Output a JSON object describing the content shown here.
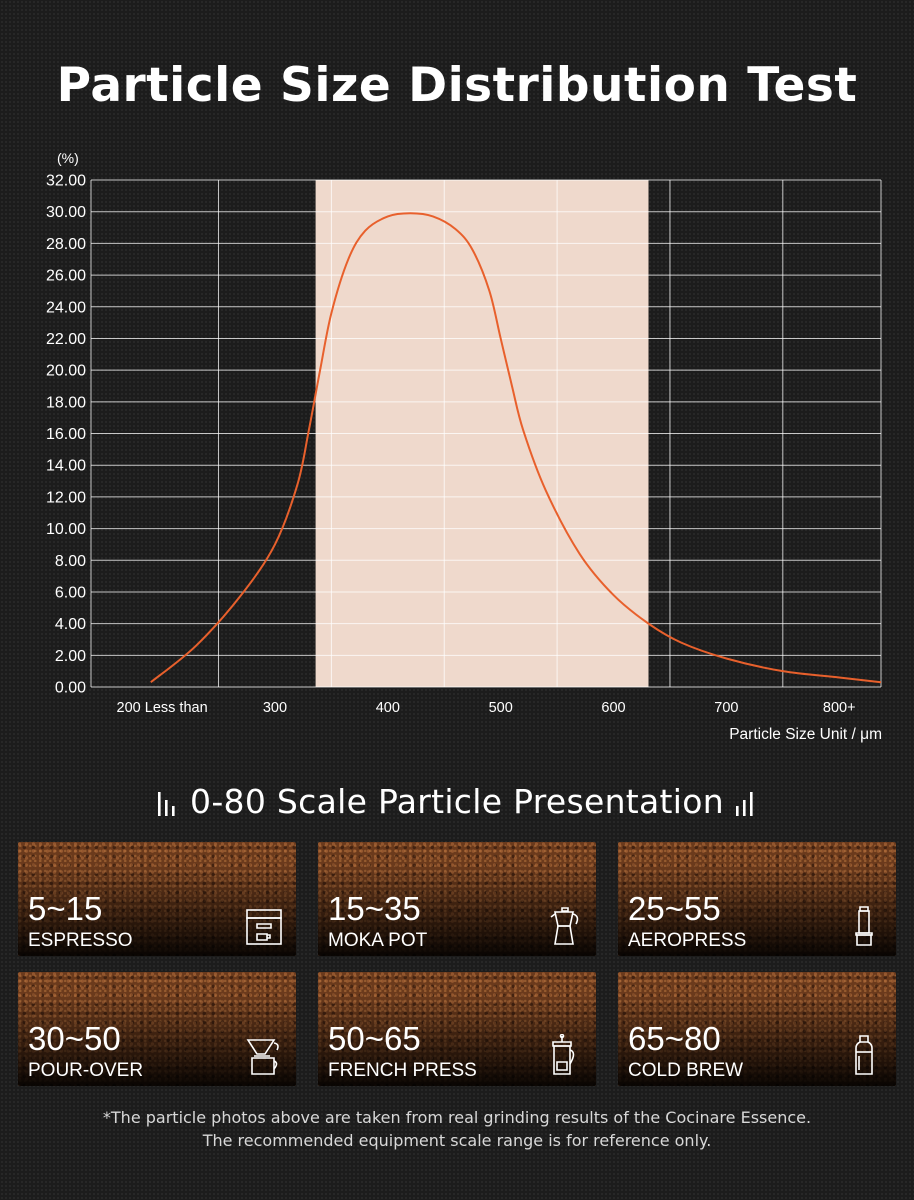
{
  "page": {
    "title": "Particle Size Distribution Test",
    "section_title": "0-80 Scale Particle Presentation",
    "footnote_line1": "*The particle photos above are taken from real grinding results of the Cocinare Essence.",
    "footnote_line2": "The recommended equipment scale range is for reference only."
  },
  "colors": {
    "background": "#1c1c1c",
    "curve": "#e8602c",
    "highlight_band": "#efd9cc",
    "grid": "#ffffff"
  },
  "chart_data": {
    "type": "line",
    "title": "Particle Size Distribution Test",
    "y_unit_label": "(%)",
    "xlabel": "Particle Size Unit / μm",
    "ylim": [
      0,
      32
    ],
    "y_ticks": [
      "0.00",
      "2.00",
      "4.00",
      "6.00",
      "8.00",
      "10.00",
      "12.00",
      "14.00",
      "16.00",
      "18.00",
      "20.00",
      "22.00",
      "24.00",
      "26.00",
      "28.00",
      "30.00",
      "32.00"
    ],
    "x_ticks": [
      {
        "label": "200 Less than",
        "value": 200
      },
      {
        "label": "300",
        "value": 300
      },
      {
        "label": "400",
        "value": 400
      },
      {
        "label": "500",
        "value": 500
      },
      {
        "label": "600",
        "value": 600
      },
      {
        "label": "700",
        "value": 700
      },
      {
        "label": "800+",
        "value": 800
      }
    ],
    "xlim": [
      137,
      837
    ],
    "highlight_range": [
      336,
      631
    ],
    "grid": true,
    "series": [
      {
        "x": [
          190,
          230,
          270,
          300,
          320,
          330,
          340,
          350,
          365,
          380,
          400,
          420,
          440,
          460,
          475,
          490,
          500,
          510,
          520,
          540,
          570,
          600,
          631,
          660,
          700,
          750,
          800,
          837
        ],
        "y": [
          0.3,
          2.6,
          5.8,
          9.0,
          12.8,
          16.2,
          20.0,
          23.6,
          27.0,
          28.8,
          29.7,
          29.9,
          29.7,
          28.9,
          27.6,
          25.0,
          22.0,
          19.0,
          16.2,
          12.4,
          8.4,
          5.8,
          4.0,
          2.8,
          1.8,
          1.0,
          0.6,
          0.3
        ]
      }
    ]
  },
  "tiles": [
    {
      "range": "5~15",
      "method": "ESPRESSO",
      "icon": "espresso-machine-icon"
    },
    {
      "range": "15~35",
      "method": "MOKA POT",
      "icon": "moka-pot-icon"
    },
    {
      "range": "25~55",
      "method": "AEROPRESS",
      "icon": "aeropress-icon"
    },
    {
      "range": "30~50",
      "method": "POUR-OVER",
      "icon": "pour-over-icon"
    },
    {
      "range": "50~65",
      "method": "FRENCH PRESS",
      "icon": "french-press-icon"
    },
    {
      "range": "65~80",
      "method": "COLD BREW",
      "icon": "cold-brew-bottle-icon"
    }
  ]
}
